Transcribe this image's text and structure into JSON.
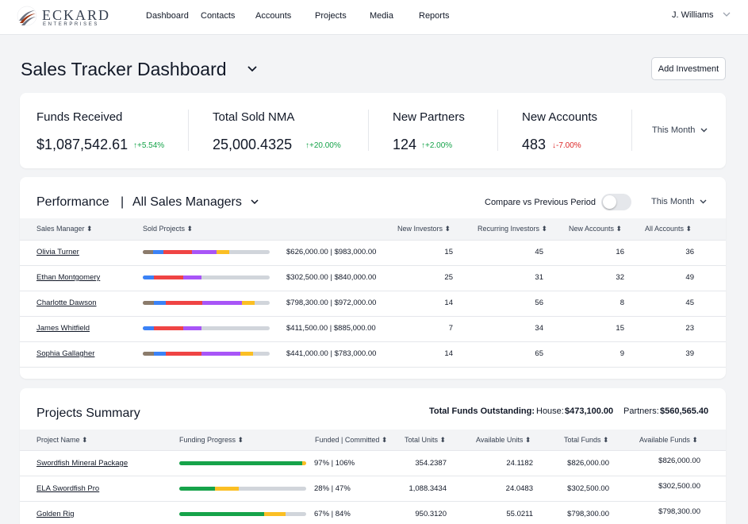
{
  "brand": {
    "name": "ECKARD",
    "subtitle": "ENTERPRISES"
  },
  "nav": [
    {
      "label": "Dashboard"
    },
    {
      "label": "Contacts"
    },
    {
      "label": "Accounts"
    },
    {
      "label": "Projects"
    },
    {
      "label": "Media"
    },
    {
      "label": "Reports"
    }
  ],
  "user": {
    "name": "J. Williams"
  },
  "page": {
    "title": "Sales Tracker Dashboard",
    "add_button": "Add Investment"
  },
  "kpis": [
    {
      "label": "Funds Received",
      "value": "$1,087,542.61",
      "delta": "↑+5.54%",
      "trend": "up"
    },
    {
      "label": "Total Sold NMA",
      "value": "25,000.4325",
      "delta": "↑+20.00%",
      "trend": "up"
    },
    {
      "label": "New Partners",
      "value": "124",
      "delta": "↑+2.00%",
      "trend": "up"
    },
    {
      "label": "New Accounts",
      "value": "483",
      "delta": "↓-7.00%",
      "trend": "down"
    }
  ],
  "kpi_period": "This Month",
  "performance": {
    "title": "Performance",
    "separator": "|",
    "manager_filter": "All Sales Managers",
    "compare_label": "Compare vs Previous Period",
    "compare_enabled": false,
    "period": "This Month",
    "columns": [
      "Sales Manager",
      "Sold Projects",
      "New Investors",
      "Recurring Investors",
      "New Accounts",
      "All Accounts"
    ],
    "rows": [
      {
        "name": "Olivia Turner",
        "amounts": "$626,000.00 | $983,000.00",
        "new_investors": "15",
        "recurring_investors": "45",
        "new_accounts": "16",
        "all_accounts": "36",
        "segments": [
          0.08,
          0.08,
          0.23,
          0.19,
          0.1
        ]
      },
      {
        "name": "Ethan Montgomery",
        "amounts": "$302,500.00 | $840,000.00",
        "new_investors": "25",
        "recurring_investors": "31",
        "new_accounts": "32",
        "all_accounts": "49",
        "segments": [
          0,
          0.09,
          0.23,
          0.14,
          0
        ]
      },
      {
        "name": "Charlotte Dawson",
        "amounts": "$798,300.00 | $972,000.00",
        "new_investors": "14",
        "recurring_investors": "56",
        "new_accounts": "8",
        "all_accounts": "45",
        "segments": [
          0.09,
          0.09,
          0.29,
          0.31,
          0.1
        ]
      },
      {
        "name": "James Whitfield",
        "amounts": "$411,500.00 | $885,000.00",
        "new_investors": "7",
        "recurring_investors": "34",
        "new_accounts": "15",
        "all_accounts": "23",
        "segments": [
          0,
          0.09,
          0.23,
          0.14,
          0
        ]
      },
      {
        "name": "Sophia Gallagher",
        "amounts": "$441,000.00 | $783,000.00",
        "new_investors": "14",
        "recurring_investors": "65",
        "new_accounts": "9",
        "all_accounts": "39",
        "segments": [
          0.09,
          0.09,
          0.28,
          0.31,
          0.1
        ]
      }
    ],
    "segment_colors": [
      "#8b7b6b",
      "#3b82f6",
      "#ef4444",
      "#a855f7",
      "#fbbf24"
    ]
  },
  "projects": {
    "title": "Projects Summary",
    "outstanding_label": "Total Funds Outstanding:",
    "house_label": "House:",
    "house_value": "$473,100.00",
    "partners_label": "Partners:",
    "partners_value": "$560,565.40",
    "columns": [
      "Project Name",
      "Funding Progress",
      "Funded | Committed",
      "Total Units",
      "Available Units",
      "Total Funds",
      "Available Funds"
    ],
    "rows": [
      {
        "name": "Swordfish Mineral Package",
        "funded": 0.97,
        "committed": 1.06,
        "pct": "97% | 106%",
        "total_units": "354.2387",
        "available_units": "24.1182",
        "total_funds": "$826,000.00",
        "available_funds": "$826,000.00"
      },
      {
        "name": "ELA Swordfish Pro",
        "funded": 0.28,
        "committed": 0.47,
        "pct": "28% | 47%",
        "total_units": "1,088.3434",
        "available_units": "24.0483",
        "total_funds": "$302,500.00",
        "available_funds": "$302,500.00"
      },
      {
        "name": "Golden Rig",
        "funded": 0.67,
        "committed": 0.84,
        "pct": "67% | 84%",
        "total_units": "950.3120",
        "available_units": "55.0211",
        "total_funds": "$798,300.00",
        "available_funds": "$798,300.00"
      }
    ],
    "funded_color": "#16a34a",
    "committed_color": "#fbbf24"
  }
}
